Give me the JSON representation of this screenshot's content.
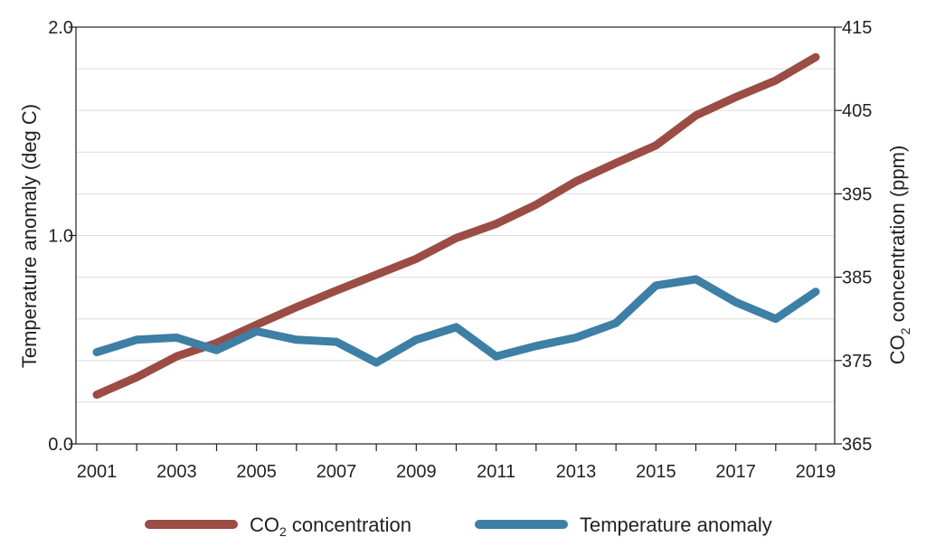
{
  "chart_data": {
    "type": "line",
    "x": [
      2001,
      2002,
      2003,
      2004,
      2005,
      2006,
      2007,
      2008,
      2009,
      2010,
      2011,
      2012,
      2013,
      2014,
      2015,
      2016,
      2017,
      2018,
      2019
    ],
    "x_ticks": [
      "2001",
      "2003",
      "2005",
      "2007",
      "2009",
      "2011",
      "2013",
      "2015",
      "2017",
      "2019"
    ],
    "y_left": {
      "label": "Temperature anomaly (deg C)",
      "ylim": [
        0,
        2
      ],
      "ticks": [
        "0.0",
        "1.0",
        "2.0"
      ]
    },
    "y_right": {
      "label_main": "CO",
      "label_sub": "2",
      "label_rest": " concentration (ppm)",
      "ylim": [
        365,
        415
      ],
      "ticks": [
        "365",
        "375",
        "385",
        "395",
        "405",
        "415"
      ]
    },
    "grid": true,
    "legend_position": "bottom",
    "series": [
      {
        "name": "CO2 concentration",
        "legend_main": "CO",
        "legend_sub": "2",
        "legend_rest": " concentration",
        "axis": "right",
        "color": "#9a4c45",
        "values": [
          370.9,
          373.0,
          375.5,
          377.1,
          379.3,
          381.4,
          383.4,
          385.3,
          387.2,
          389.7,
          391.4,
          393.7,
          396.5,
          398.7,
          400.8,
          404.4,
          406.6,
          408.6,
          411.4
        ]
      },
      {
        "name": "Temperature anomaly",
        "legend_main": "Temperature anomaly",
        "legend_sub": "",
        "legend_rest": "",
        "axis": "left",
        "color": "#3d7fa5",
        "values": [
          0.44,
          0.5,
          0.51,
          0.45,
          0.54,
          0.5,
          0.49,
          0.39,
          0.5,
          0.56,
          0.42,
          0.47,
          0.51,
          0.58,
          0.76,
          0.79,
          0.68,
          0.6,
          0.73
        ]
      }
    ]
  }
}
